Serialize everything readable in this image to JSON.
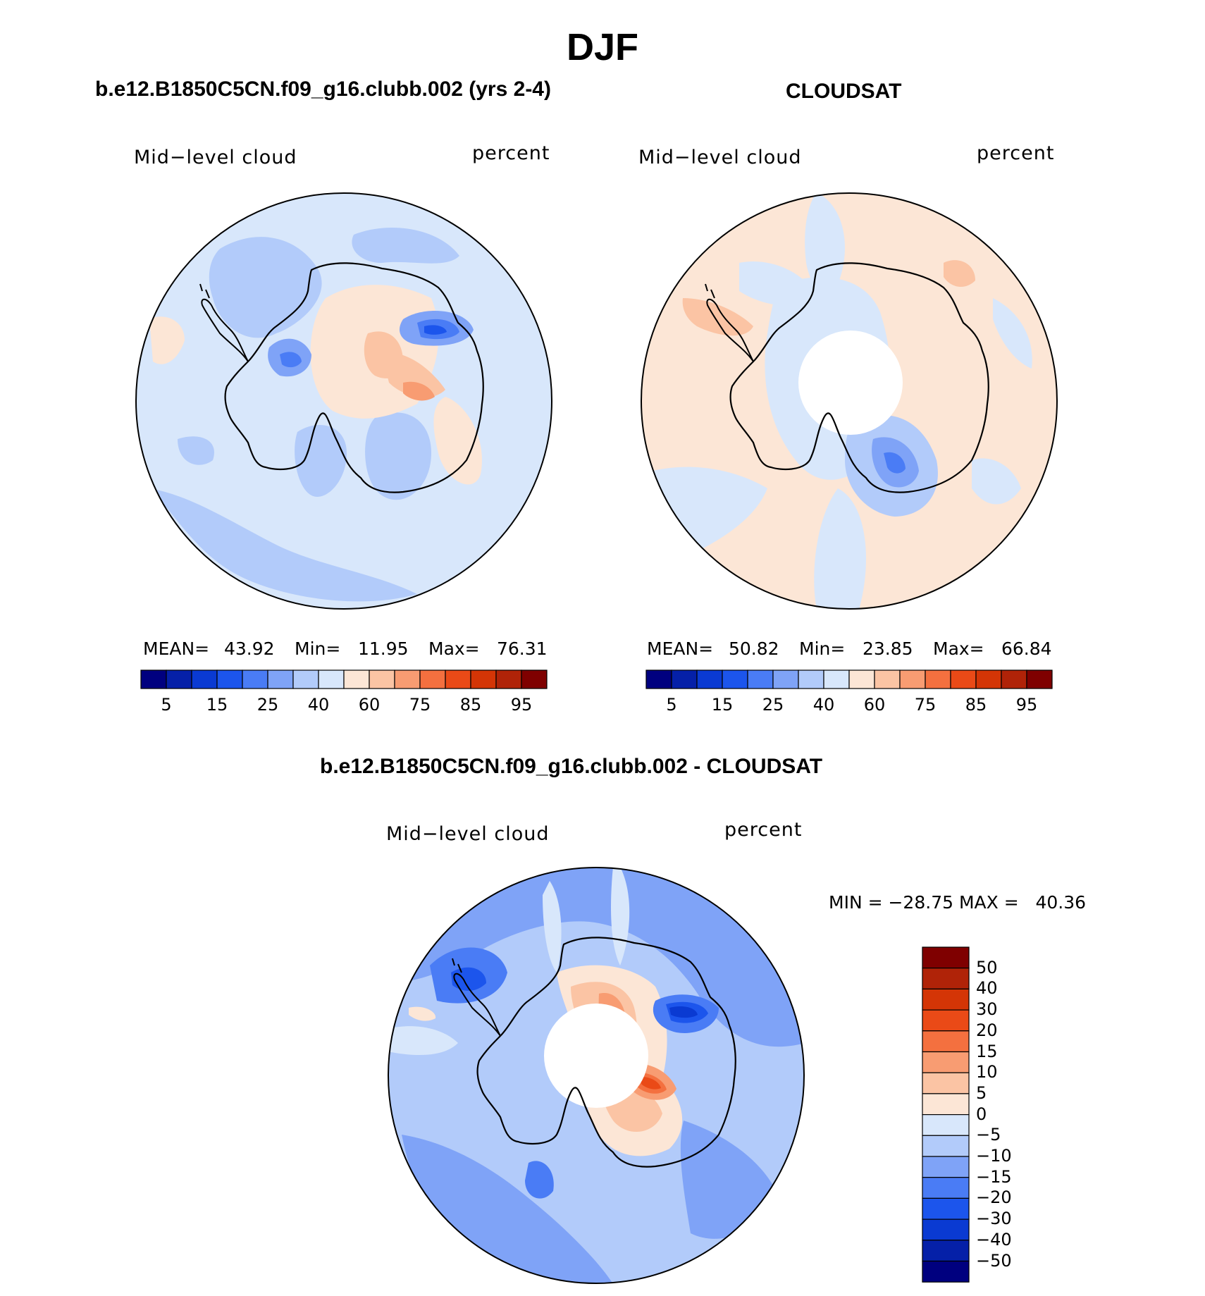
{
  "figure": {
    "season": "DJF"
  },
  "panels": [
    {
      "id": "model",
      "title": "b.e12.B1850C5CN.f09_g16.clubb.002 (yrs 2-4)",
      "left_label": "Mid−level cloud",
      "right_label": "percent",
      "stats": {
        "mean_label": "MEAN=",
        "mean": "43.92",
        "min_label": "Min=",
        "min": "11.95",
        "max_label": "Max=",
        "max": "76.31"
      },
      "colorbar_ticks": [
        "5",
        "15",
        "25",
        "40",
        "60",
        "75",
        "85",
        "95"
      ]
    },
    {
      "id": "obs",
      "title": "CLOUDSAT",
      "left_label": "Mid−level cloud",
      "right_label": "percent",
      "stats": {
        "mean_label": "MEAN=",
        "mean": "50.82",
        "min_label": "Min=",
        "min": "23.85",
        "max_label": "Max=",
        "max": "66.84"
      },
      "colorbar_ticks": [
        "5",
        "15",
        "25",
        "40",
        "60",
        "75",
        "85",
        "95"
      ]
    }
  ],
  "diff_panel": {
    "title": "b.e12.B1850C5CN.f09_g16.clubb.002 - CLOUDSAT",
    "left_label": "Mid−level cloud",
    "right_label": "percent",
    "minmax": "MIN = −28.75 MAX =   40.36",
    "colorbar_ticks": [
      "50",
      "40",
      "30",
      "20",
      "15",
      "10",
      "5",
      "0",
      "−5",
      "−10",
      "−15",
      "−20",
      "−30",
      "−40",
      "−50"
    ]
  },
  "colors": {
    "scale": [
      "#00007f",
      "#0520a8",
      "#0a3ad2",
      "#1c55ec",
      "#4a7cf5",
      "#7fa3f7",
      "#b2cbfa",
      "#d8e7fb",
      "#fce6d6",
      "#fbc4a4",
      "#f89c72",
      "#f4703f",
      "#ea4a17",
      "#d43506",
      "#b02308",
      "#7f0000"
    ],
    "outline": "#000000"
  },
  "chart_data": [
    {
      "type": "heatmap",
      "projection": "south-polar-stereographic",
      "title": "b.e12.B1850C5CN.f09_g16.clubb.002 (yrs 2-4)",
      "variable": "Mid-level cloud",
      "units": "percent",
      "mean": 43.92,
      "min": 11.95,
      "max": 76.31,
      "contour_levels": [
        5,
        10,
        15,
        20,
        25,
        30,
        40,
        50,
        60,
        70,
        75,
        80,
        85,
        90,
        95
      ]
    },
    {
      "type": "heatmap",
      "projection": "south-polar-stereographic",
      "title": "CLOUDSAT",
      "variable": "Mid-level cloud",
      "units": "percent",
      "mean": 50.82,
      "min": 23.85,
      "max": 66.84,
      "contour_levels": [
        5,
        10,
        15,
        20,
        25,
        30,
        40,
        50,
        60,
        70,
        75,
        80,
        85,
        90,
        95
      ],
      "missing_region": "south pole cap"
    },
    {
      "type": "heatmap",
      "projection": "south-polar-stereographic",
      "title": "b.e12.B1850C5CN.f09_g16.clubb.002 - CLOUDSAT",
      "variable": "Mid-level cloud",
      "units": "percent",
      "min": -28.75,
      "max": 40.36,
      "contour_levels": [
        -50,
        -40,
        -30,
        -20,
        -15,
        -10,
        -5,
        0,
        5,
        10,
        15,
        20,
        30,
        40,
        50
      ],
      "missing_region": "south pole cap"
    }
  ]
}
